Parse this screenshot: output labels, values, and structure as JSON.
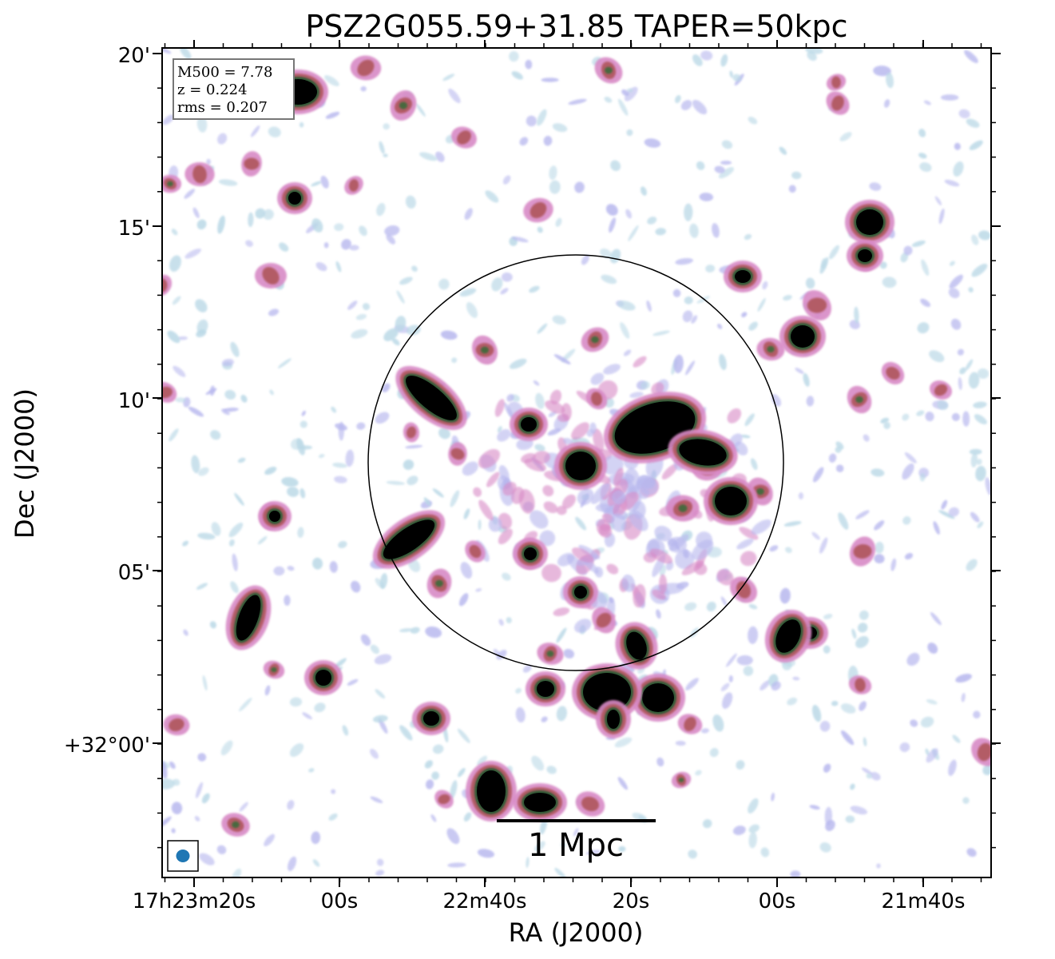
{
  "title": "PSZ2G055.59+31.85 TAPER=50kpc",
  "xlabel": "RA (J2000)",
  "ylabel": "Dec (J2000)",
  "xticks": [
    "17h23m20s",
    "00s",
    "22m40s",
    "20s",
    "00s",
    "21m40s"
  ],
  "yticks": [
    "20'",
    "15'",
    "10'",
    "05'",
    "+32°00'"
  ],
  "info": {
    "m500": "M500 = 7.78",
    "z": "z = 0.224",
    "rms": "rms = 0.207"
  },
  "scalebar_label": "1 Mpc",
  "colors": {
    "faint": "#b9d8e6",
    "low": "#b7b7ee",
    "mid": "#d88ac6",
    "high": "#b35b66",
    "peak": "#000000"
  }
}
